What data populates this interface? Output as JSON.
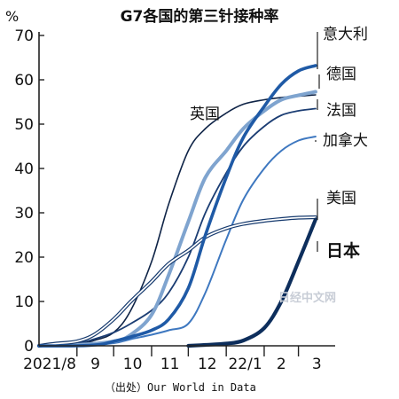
{
  "chart_data": {
    "type": "line",
    "title": "G7各国的第三针接种率",
    "ylabel": "%",
    "xlabel": "",
    "ylim": [
      0,
      70
    ],
    "yticks": [
      0,
      10,
      20,
      30,
      40,
      50,
      60,
      70
    ],
    "xlim": [
      "2021-08-01",
      "2022-03-31"
    ],
    "xticks": [
      {
        "date": "2021-08-01",
        "label": "2021/8"
      },
      {
        "date": "2021-09-01",
        "label": "9"
      },
      {
        "date": "2021-10-01",
        "label": "10"
      },
      {
        "date": "2021-11-01",
        "label": "11"
      },
      {
        "date": "2021-12-01",
        "label": "12"
      },
      {
        "date": "2022-01-01",
        "label": "22/1"
      },
      {
        "date": "2022-02-01",
        "label": "2"
      },
      {
        "date": "2022-03-01",
        "label": "3"
      }
    ],
    "grid": false,
    "source": "（出处）Our World in Data",
    "watermark": "日经中文网",
    "series": [
      {
        "name": "英国",
        "color": "#0f2447",
        "points": [
          [
            "2021-08-01",
            0
          ],
          [
            "2021-09-01",
            0.4
          ],
          [
            "2021-09-15",
            1.2
          ],
          [
            "2021-10-01",
            3
          ],
          [
            "2021-10-15",
            8
          ],
          [
            "2021-11-01",
            19
          ],
          [
            "2021-11-15",
            32
          ],
          [
            "2021-12-01",
            44
          ],
          [
            "2021-12-15",
            49
          ],
          [
            "2022-01-01",
            52.5
          ],
          [
            "2022-01-15",
            54.5
          ],
          [
            "2022-02-01",
            55.5
          ],
          [
            "2022-02-15",
            56
          ],
          [
            "2022-03-01",
            56.3
          ],
          [
            "2022-03-15",
            56.6
          ]
        ]
      },
      {
        "name": "意大利",
        "color": "#1f5aa6",
        "points": [
          [
            "2021-08-01",
            0
          ],
          [
            "2021-09-01",
            0
          ],
          [
            "2021-09-20",
            0.3
          ],
          [
            "2021-10-01",
            1
          ],
          [
            "2021-10-15",
            2
          ],
          [
            "2021-11-01",
            3.5
          ],
          [
            "2021-11-15",
            6
          ],
          [
            "2021-12-01",
            13
          ],
          [
            "2021-12-15",
            25
          ],
          [
            "2022-01-01",
            38
          ],
          [
            "2022-01-15",
            47
          ],
          [
            "2022-02-01",
            54
          ],
          [
            "2022-02-15",
            59
          ],
          [
            "2022-03-01",
            62
          ],
          [
            "2022-03-15",
            63.2
          ]
        ]
      },
      {
        "name": "德国",
        "color": "#7fa4cf",
        "points": [
          [
            "2021-08-01",
            0
          ],
          [
            "2021-09-01",
            0.2
          ],
          [
            "2021-10-01",
            1
          ],
          [
            "2021-10-15",
            2.5
          ],
          [
            "2021-11-01",
            7
          ],
          [
            "2021-11-15",
            16
          ],
          [
            "2021-12-01",
            28
          ],
          [
            "2021-12-15",
            38
          ],
          [
            "2022-01-01",
            44
          ],
          [
            "2022-01-15",
            49
          ],
          [
            "2022-02-01",
            53
          ],
          [
            "2022-02-15",
            55.5
          ],
          [
            "2022-03-01",
            56.5
          ],
          [
            "2022-03-15",
            57.3
          ]
        ]
      },
      {
        "name": "法国",
        "color": "#1b3d73",
        "points": [
          [
            "2021-08-01",
            0
          ],
          [
            "2021-09-01",
            0.6
          ],
          [
            "2021-09-15",
            1.5
          ],
          [
            "2021-10-01",
            3
          ],
          [
            "2021-10-15",
            5
          ],
          [
            "2021-11-01",
            8
          ],
          [
            "2021-11-15",
            12
          ],
          [
            "2021-12-01",
            20
          ],
          [
            "2021-12-15",
            30
          ],
          [
            "2022-01-01",
            39
          ],
          [
            "2022-01-15",
            45
          ],
          [
            "2022-02-01",
            49.5
          ],
          [
            "2022-02-15",
            52
          ],
          [
            "2022-03-01",
            53
          ],
          [
            "2022-03-15",
            53.5
          ]
        ]
      },
      {
        "name": "加拿大",
        "color": "#3e78c0",
        "points": [
          [
            "2021-08-01",
            0
          ],
          [
            "2021-09-01",
            0
          ],
          [
            "2021-10-01",
            0.6
          ],
          [
            "2021-10-15",
            1.5
          ],
          [
            "2021-11-01",
            2.5
          ],
          [
            "2021-11-15",
            3.5
          ],
          [
            "2021-12-01",
            5
          ],
          [
            "2021-12-15",
            12
          ],
          [
            "2022-01-01",
            24
          ],
          [
            "2022-01-15",
            33
          ],
          [
            "2022-02-01",
            40
          ],
          [
            "2022-02-15",
            44
          ],
          [
            "2022-03-01",
            46.3
          ],
          [
            "2022-03-15",
            47.2
          ]
        ]
      },
      {
        "name": "美国",
        "color": "#163a6e",
        "points": [
          [
            "2021-08-01",
            0
          ],
          [
            "2021-08-15",
            0.5
          ],
          [
            "2021-09-01",
            1
          ],
          [
            "2021-09-15",
            2.5
          ],
          [
            "2021-10-01",
            6
          ],
          [
            "2021-10-15",
            10
          ],
          [
            "2021-11-01",
            14.5
          ],
          [
            "2021-11-15",
            18.5
          ],
          [
            "2021-12-01",
            21.5
          ],
          [
            "2021-12-15",
            24.5
          ],
          [
            "2022-01-01",
            26.5
          ],
          [
            "2022-01-15",
            27.5
          ],
          [
            "2022-02-01",
            28.2
          ],
          [
            "2022-02-15",
            28.6
          ],
          [
            "2022-03-01",
            28.9
          ],
          [
            "2022-03-15",
            29
          ]
        ]
      },
      {
        "name": "日本",
        "color": "#0d2e5c",
        "points": [
          [
            "2021-12-01",
            0
          ],
          [
            "2021-12-15",
            0.2
          ],
          [
            "2022-01-01",
            0.5
          ],
          [
            "2022-01-15",
            1.2
          ],
          [
            "2022-02-01",
            4
          ],
          [
            "2022-02-15",
            10
          ],
          [
            "2022-03-01",
            19
          ],
          [
            "2022-03-15",
            28.5
          ]
        ]
      }
    ]
  }
}
